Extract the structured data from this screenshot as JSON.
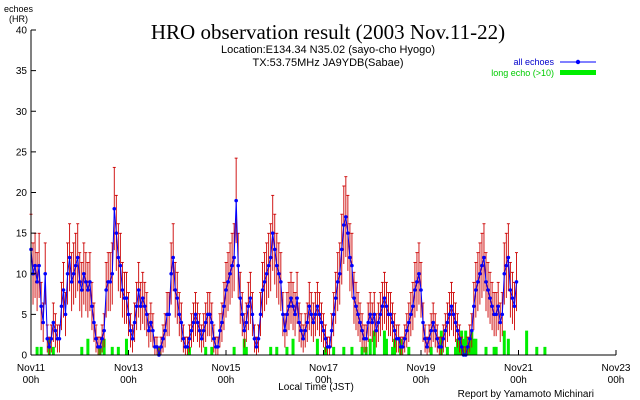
{
  "colors": {
    "series": "#0000ff",
    "errorbar": "#cc0000",
    "long_echo": "#00ee00",
    "axis": "#000000"
  },
  "chart_data": {
    "type": "line",
    "title": "HRO observation result (2003 Nov.11-22)",
    "subtitle_lines": [
      "Location:E134.34 N35.02 (sayo-cho Hyogo)",
      "TX:53.75MHz JA9YDB(Sabae)"
    ],
    "ylabel_lines": [
      "echoes",
      "(HR)"
    ],
    "xlabel": "Local Time (JST)",
    "credit": "Report by Yamamoto Michinari",
    "ylim": [
      0,
      40
    ],
    "yticks": [
      0,
      5,
      10,
      15,
      20,
      25,
      30,
      35,
      40
    ],
    "xlim_hours": [
      0,
      288
    ],
    "xticks": [
      {
        "label": "Nov11",
        "sub": "00h",
        "hour": 0
      },
      {
        "label": "Nov13",
        "sub": "00h",
        "hour": 48
      },
      {
        "label": "Nov15",
        "sub": "00h",
        "hour": 96
      },
      {
        "label": "Nov17",
        "sub": "00h",
        "hour": 144
      },
      {
        "label": "Nov19",
        "sub": "00h",
        "hour": 192
      },
      {
        "label": "Nov21",
        "sub": "00h",
        "hour": 240
      },
      {
        "label": "Nov23",
        "sub": "00h",
        "hour": 288
      }
    ],
    "legend_placement": "top-right",
    "series": [
      {
        "name": "all echoes",
        "values": [
          13,
          10,
          11,
          9,
          11,
          6,
          4,
          10,
          2,
          1,
          2,
          4,
          3,
          2,
          2,
          6,
          8,
          5,
          10,
          12,
          9,
          10,
          11,
          12,
          9,
          8,
          10,
          9,
          8,
          9,
          6,
          4,
          2,
          1,
          1,
          2,
          3,
          8,
          9,
          9,
          10,
          18,
          15,
          12,
          11,
          8,
          7,
          7,
          5,
          3,
          2,
          4,
          6,
          8,
          6,
          7,
          6,
          5,
          3,
          4,
          3,
          1,
          1,
          0,
          1,
          2,
          3,
          5,
          5,
          10,
          12,
          8,
          7,
          5,
          4,
          2,
          1,
          1,
          2,
          3,
          4,
          5,
          4,
          3,
          2,
          3,
          4,
          5,
          5,
          4,
          2,
          1,
          1,
          3,
          4,
          6,
          8,
          9,
          10,
          11,
          12,
          19,
          11,
          7,
          5,
          3,
          4,
          6,
          7,
          5,
          2,
          1,
          2,
          5,
          8,
          9,
          10,
          11,
          12,
          15,
          13,
          11,
          10,
          9,
          5,
          3,
          5,
          6,
          7,
          6,
          5,
          7,
          4,
          3,
          2,
          3,
          4,
          6,
          5,
          4,
          5,
          6,
          5,
          4,
          3,
          2,
          1,
          1,
          3,
          5,
          7,
          9,
          10,
          13,
          16,
          17,
          15,
          12,
          11,
          7,
          6,
          5,
          4,
          3,
          2,
          2,
          4,
          5,
          4,
          5,
          3,
          4,
          5,
          6,
          7,
          6,
          5,
          5,
          4,
          3,
          2,
          2,
          1,
          1,
          2,
          3,
          4,
          5,
          6,
          8,
          9,
          10,
          8,
          4,
          2,
          1,
          2,
          3,
          4,
          3,
          2,
          1,
          1,
          2,
          3,
          4,
          5,
          6,
          5,
          4,
          3,
          2,
          1,
          0,
          0,
          1,
          2,
          3,
          6,
          8,
          9,
          10,
          11,
          12,
          9,
          8,
          7,
          6,
          5,
          5,
          6,
          4,
          5,
          10,
          11,
          12,
          8,
          7,
          6,
          9
        ],
        "color": "#0000ff"
      },
      {
        "name": "long echo (>10)",
        "color": "#00ee00"
      }
    ],
    "long_echo_hours": [
      3,
      5,
      9,
      11,
      25,
      28,
      34,
      36,
      40,
      43,
      47,
      63,
      78,
      86,
      89,
      100,
      105,
      106,
      118,
      121,
      126,
      129,
      141,
      145,
      149,
      154,
      158,
      163,
      165,
      167,
      169,
      174,
      175,
      178,
      179,
      182,
      186,
      197,
      202,
      205,
      209,
      210,
      211,
      212,
      213,
      214,
      215,
      216,
      217,
      218,
      219,
      224,
      228,
      229,
      233,
      235,
      244,
      249,
      253
    ],
    "long_echo_values": [
      1,
      1,
      2,
      1,
      1,
      2,
      1,
      2,
      1,
      1,
      2,
      1,
      1,
      1,
      1,
      1,
      2,
      1,
      1,
      1,
      1,
      2,
      2,
      1,
      1,
      1,
      1,
      1,
      1,
      2,
      3,
      3,
      2,
      1,
      2,
      2,
      1,
      1,
      3,
      1,
      1,
      2,
      2,
      3,
      2,
      3,
      1,
      2,
      3,
      2,
      2,
      1,
      1,
      1,
      3,
      2,
      3,
      1,
      1
    ]
  }
}
